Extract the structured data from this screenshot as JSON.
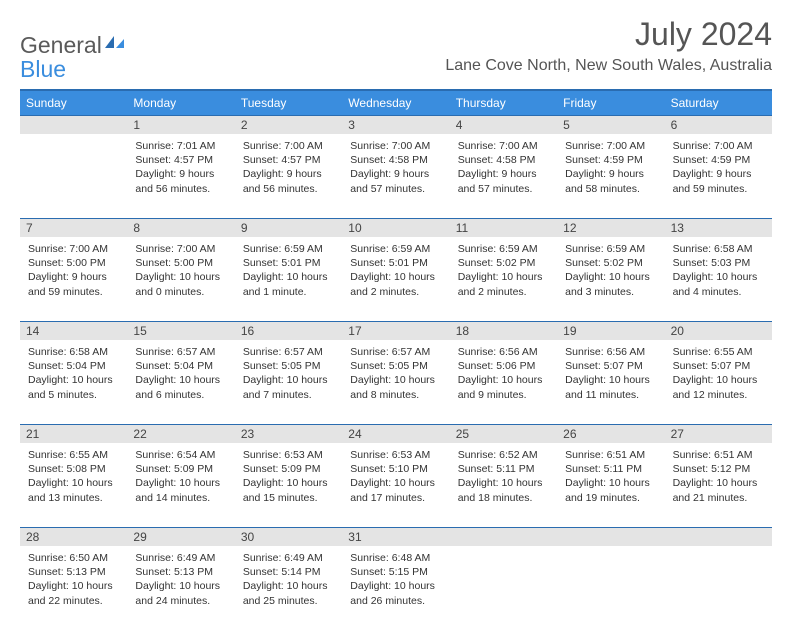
{
  "logo": {
    "text1": "General",
    "text2": "Blue"
  },
  "title": "July 2024",
  "location": "Lane Cove North, New South Wales, Australia",
  "headerColor": "#3a8dde",
  "headerBorder": "#2a6cb0",
  "dayNumBg": "#e4e4e4",
  "weekdays": [
    "Sunday",
    "Monday",
    "Tuesday",
    "Wednesday",
    "Thursday",
    "Friday",
    "Saturday"
  ],
  "weeks": [
    [
      null,
      {
        "n": "1",
        "sr": "Sunrise: 7:01 AM",
        "ss": "Sunset: 4:57 PM",
        "d1": "Daylight: 9 hours",
        "d2": "and 56 minutes."
      },
      {
        "n": "2",
        "sr": "Sunrise: 7:00 AM",
        "ss": "Sunset: 4:57 PM",
        "d1": "Daylight: 9 hours",
        "d2": "and 56 minutes."
      },
      {
        "n": "3",
        "sr": "Sunrise: 7:00 AM",
        "ss": "Sunset: 4:58 PM",
        "d1": "Daylight: 9 hours",
        "d2": "and 57 minutes."
      },
      {
        "n": "4",
        "sr": "Sunrise: 7:00 AM",
        "ss": "Sunset: 4:58 PM",
        "d1": "Daylight: 9 hours",
        "d2": "and 57 minutes."
      },
      {
        "n": "5",
        "sr": "Sunrise: 7:00 AM",
        "ss": "Sunset: 4:59 PM",
        "d1": "Daylight: 9 hours",
        "d2": "and 58 minutes."
      },
      {
        "n": "6",
        "sr": "Sunrise: 7:00 AM",
        "ss": "Sunset: 4:59 PM",
        "d1": "Daylight: 9 hours",
        "d2": "and 59 minutes."
      }
    ],
    [
      {
        "n": "7",
        "sr": "Sunrise: 7:00 AM",
        "ss": "Sunset: 5:00 PM",
        "d1": "Daylight: 9 hours",
        "d2": "and 59 minutes."
      },
      {
        "n": "8",
        "sr": "Sunrise: 7:00 AM",
        "ss": "Sunset: 5:00 PM",
        "d1": "Daylight: 10 hours",
        "d2": "and 0 minutes."
      },
      {
        "n": "9",
        "sr": "Sunrise: 6:59 AM",
        "ss": "Sunset: 5:01 PM",
        "d1": "Daylight: 10 hours",
        "d2": "and 1 minute."
      },
      {
        "n": "10",
        "sr": "Sunrise: 6:59 AM",
        "ss": "Sunset: 5:01 PM",
        "d1": "Daylight: 10 hours",
        "d2": "and 2 minutes."
      },
      {
        "n": "11",
        "sr": "Sunrise: 6:59 AM",
        "ss": "Sunset: 5:02 PM",
        "d1": "Daylight: 10 hours",
        "d2": "and 2 minutes."
      },
      {
        "n": "12",
        "sr": "Sunrise: 6:59 AM",
        "ss": "Sunset: 5:02 PM",
        "d1": "Daylight: 10 hours",
        "d2": "and 3 minutes."
      },
      {
        "n": "13",
        "sr": "Sunrise: 6:58 AM",
        "ss": "Sunset: 5:03 PM",
        "d1": "Daylight: 10 hours",
        "d2": "and 4 minutes."
      }
    ],
    [
      {
        "n": "14",
        "sr": "Sunrise: 6:58 AM",
        "ss": "Sunset: 5:04 PM",
        "d1": "Daylight: 10 hours",
        "d2": "and 5 minutes."
      },
      {
        "n": "15",
        "sr": "Sunrise: 6:57 AM",
        "ss": "Sunset: 5:04 PM",
        "d1": "Daylight: 10 hours",
        "d2": "and 6 minutes."
      },
      {
        "n": "16",
        "sr": "Sunrise: 6:57 AM",
        "ss": "Sunset: 5:05 PM",
        "d1": "Daylight: 10 hours",
        "d2": "and 7 minutes."
      },
      {
        "n": "17",
        "sr": "Sunrise: 6:57 AM",
        "ss": "Sunset: 5:05 PM",
        "d1": "Daylight: 10 hours",
        "d2": "and 8 minutes."
      },
      {
        "n": "18",
        "sr": "Sunrise: 6:56 AM",
        "ss": "Sunset: 5:06 PM",
        "d1": "Daylight: 10 hours",
        "d2": "and 9 minutes."
      },
      {
        "n": "19",
        "sr": "Sunrise: 6:56 AM",
        "ss": "Sunset: 5:07 PM",
        "d1": "Daylight: 10 hours",
        "d2": "and 11 minutes."
      },
      {
        "n": "20",
        "sr": "Sunrise: 6:55 AM",
        "ss": "Sunset: 5:07 PM",
        "d1": "Daylight: 10 hours",
        "d2": "and 12 minutes."
      }
    ],
    [
      {
        "n": "21",
        "sr": "Sunrise: 6:55 AM",
        "ss": "Sunset: 5:08 PM",
        "d1": "Daylight: 10 hours",
        "d2": "and 13 minutes."
      },
      {
        "n": "22",
        "sr": "Sunrise: 6:54 AM",
        "ss": "Sunset: 5:09 PM",
        "d1": "Daylight: 10 hours",
        "d2": "and 14 minutes."
      },
      {
        "n": "23",
        "sr": "Sunrise: 6:53 AM",
        "ss": "Sunset: 5:09 PM",
        "d1": "Daylight: 10 hours",
        "d2": "and 15 minutes."
      },
      {
        "n": "24",
        "sr": "Sunrise: 6:53 AM",
        "ss": "Sunset: 5:10 PM",
        "d1": "Daylight: 10 hours",
        "d2": "and 17 minutes."
      },
      {
        "n": "25",
        "sr": "Sunrise: 6:52 AM",
        "ss": "Sunset: 5:11 PM",
        "d1": "Daylight: 10 hours",
        "d2": "and 18 minutes."
      },
      {
        "n": "26",
        "sr": "Sunrise: 6:51 AM",
        "ss": "Sunset: 5:11 PM",
        "d1": "Daylight: 10 hours",
        "d2": "and 19 minutes."
      },
      {
        "n": "27",
        "sr": "Sunrise: 6:51 AM",
        "ss": "Sunset: 5:12 PM",
        "d1": "Daylight: 10 hours",
        "d2": "and 21 minutes."
      }
    ],
    [
      {
        "n": "28",
        "sr": "Sunrise: 6:50 AM",
        "ss": "Sunset: 5:13 PM",
        "d1": "Daylight: 10 hours",
        "d2": "and 22 minutes."
      },
      {
        "n": "29",
        "sr": "Sunrise: 6:49 AM",
        "ss": "Sunset: 5:13 PM",
        "d1": "Daylight: 10 hours",
        "d2": "and 24 minutes."
      },
      {
        "n": "30",
        "sr": "Sunrise: 6:49 AM",
        "ss": "Sunset: 5:14 PM",
        "d1": "Daylight: 10 hours",
        "d2": "and 25 minutes."
      },
      {
        "n": "31",
        "sr": "Sunrise: 6:48 AM",
        "ss": "Sunset: 5:15 PM",
        "d1": "Daylight: 10 hours",
        "d2": "and 26 minutes."
      },
      null,
      null,
      null
    ]
  ]
}
